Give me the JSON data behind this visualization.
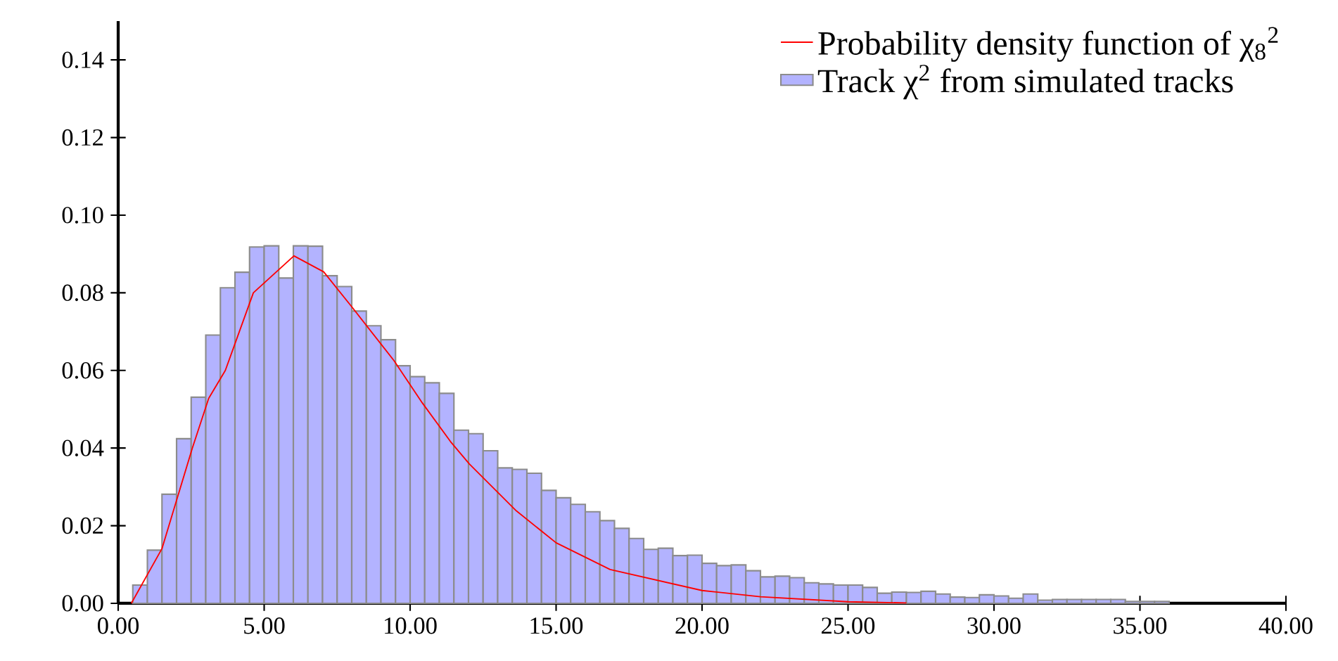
{
  "chart_data": {
    "type": "histogram",
    "series": [
      {
        "name": "Track χ$^{2}$ from simulated tracks",
        "color": "#b3b3ff",
        "bins": [
          0.5,
          1,
          1.5,
          2,
          2.5,
          3,
          3.5,
          4,
          4.5,
          5,
          5.5,
          6,
          6.5,
          7,
          7.5,
          8,
          8.5,
          9,
          9.5,
          10,
          10.5,
          11,
          11.5,
          12,
          12.5,
          13,
          13.5,
          14,
          14.5,
          15,
          15.5,
          16,
          16.5,
          17,
          17.5,
          18,
          18.5,
          19,
          19.5,
          20,
          20.5,
          21,
          21.5,
          22,
          22.5,
          23,
          23.5,
          24,
          24.5,
          25,
          25.5,
          26,
          26.5,
          27,
          27.5,
          28,
          28.5,
          29,
          29.5,
          30,
          30.5,
          31,
          31.5,
          32,
          32.5,
          33,
          33.5,
          34,
          34.5,
          35,
          35.5,
          36
        ],
        "values": [
          0.0047,
          0.0137,
          0.0281,
          0.0424,
          0.0531,
          0.0691,
          0.0813,
          0.0853,
          0.0918,
          0.0921,
          0.0838,
          0.0921,
          0.092,
          0.0844,
          0.0816,
          0.0753,
          0.0715,
          0.0679,
          0.0612,
          0.0584,
          0.0568,
          0.0541,
          0.0446,
          0.0437,
          0.0393,
          0.0349,
          0.0345,
          0.0335,
          0.0291,
          0.0272,
          0.0255,
          0.0236,
          0.0213,
          0.0193,
          0.0167,
          0.0139,
          0.0142,
          0.0123,
          0.0124,
          0.0103,
          0.0097,
          0.0099,
          0.0084,
          0.0068,
          0.007,
          0.0066,
          0.0053,
          0.005,
          0.0047,
          0.0047,
          0.0041,
          0.0026,
          0.0029,
          0.0028,
          0.0031,
          0.0024,
          0.0016,
          0.0015,
          0.0022,
          0.0019,
          0.0013,
          0.0024,
          0.0008,
          0.001,
          0.001,
          0.001,
          0.001,
          0.001,
          0.0005,
          0.0005,
          0.0005
        ]
      },
      {
        "type": "line",
        "name": "Probability density function of χ$_{8}$$^{2}$",
        "color": "#ff0000",
        "x": [
          0.45,
          1.5,
          2.54,
          3.1,
          3.67,
          4.63,
          6.02,
          7.04,
          8.0,
          9.45,
          10.42,
          11.38,
          12.03,
          13.64,
          15.0,
          16.85,
          20.0,
          22.0,
          25.0,
          27.0
        ],
        "values": [
          0,
          0.0141,
          0.04,
          0.0528,
          0.06,
          0.08,
          0.0895,
          0.0854,
          0.0764,
          0.0625,
          0.0516,
          0.0417,
          0.0359,
          0.0238,
          0.0156,
          0.0087,
          0.0033,
          0.0017,
          0.0004,
          0.0001
        ]
      }
    ],
    "xlim": [
      0,
      40
    ],
    "ylim": [
      0,
      0.15
    ],
    "xticks": [
      {
        "value": 0,
        "label": "0.00"
      },
      {
        "value": 5,
        "label": "5.00"
      },
      {
        "value": 10,
        "label": "10.00"
      },
      {
        "value": 15,
        "label": "15.00"
      },
      {
        "value": 20,
        "label": "20.00"
      },
      {
        "value": 25,
        "label": "25.00"
      },
      {
        "value": 30,
        "label": "30.00"
      },
      {
        "value": 35,
        "label": "35.00"
      },
      {
        "value": 40,
        "label": "40.00"
      }
    ],
    "yticks": [
      {
        "value": 0,
        "label": "0.00"
      },
      {
        "value": 0.02,
        "label": "0.02"
      },
      {
        "value": 0.04,
        "label": "0.04"
      },
      {
        "value": 0.06,
        "label": "0.06"
      },
      {
        "value": 0.08,
        "label": "0.08"
      },
      {
        "value": 0.1,
        "label": "0.10"
      },
      {
        "value": 0.12,
        "label": "0.12"
      },
      {
        "value": 0.14,
        "label": "0.14"
      }
    ],
    "legend": "top right"
  }
}
